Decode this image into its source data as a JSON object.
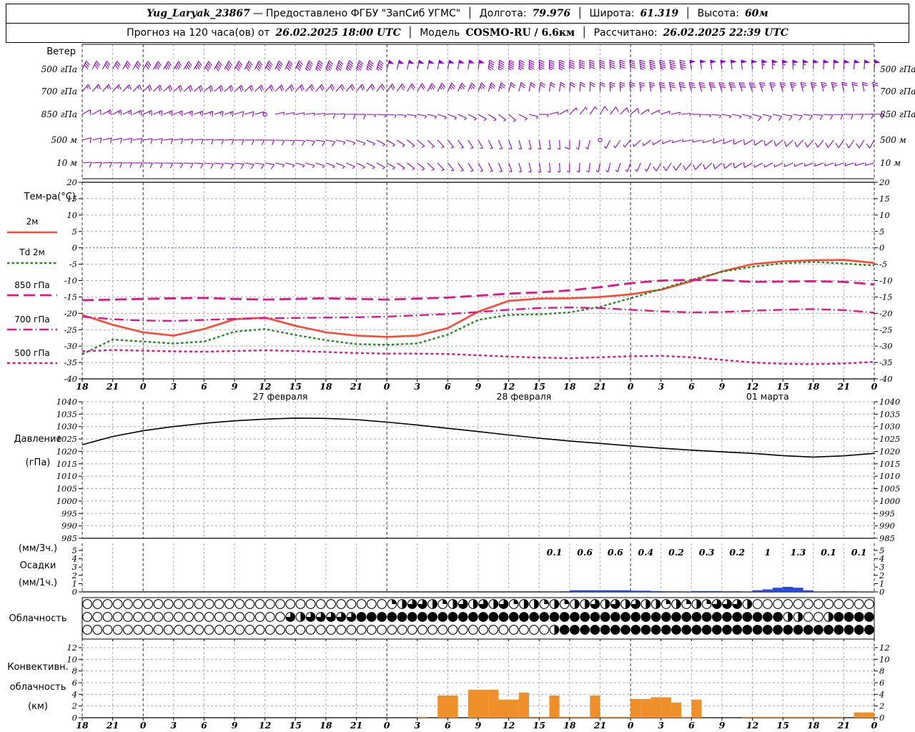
{
  "header": {
    "station": "Yug_Laryak_23867",
    "dash": "—",
    "provided": "Предоставлено ФГБУ \"ЗапСиб УГМС\"",
    "sep": "│",
    "lon_label": "Долгота:",
    "lon_value": "79.976",
    "lat_label": "Широта:",
    "lat_value": "61.319",
    "alt_label": "Высота:",
    "alt_value": "60м",
    "forecast_label": "Прогноз на 120 часа(ов) от",
    "forecast_value": "26.02.2025 18:00 UTC",
    "model_label": "Модель",
    "model_value": "COSMO-RU / 6.6км",
    "calc_label": "Рассчитано:",
    "calc_value": "26.02.2025 22:39 UTC"
  },
  "panels": {
    "wind_title": "Ветер",
    "temp_title": "Тем-ра(°C)",
    "pressure_l1": "Давление",
    "pressure_l2": "(гПа)",
    "precip_l1": "(мм/3ч.)",
    "precip_l2": "Осадки",
    "precip_l3": "(мм/1ч.)",
    "cloud_label": "Облачность",
    "conv_l1": "Конвективн.",
    "conv_l2": "облачность",
    "conv_l3": "(км)"
  },
  "chart_data": {
    "type": "meteogram",
    "colors": {
      "barb": "#9400d3",
      "t2m": "#ff4733",
      "td2m": "#228b22",
      "magenta": "#e0148c",
      "pressure": "#000000",
      "precip_bar": "#2947d8",
      "convective_bar": "#ef8f2a",
      "zero_line": "#3b5bff",
      "grid": "#ababab",
      "grid_dark": "#333333"
    },
    "time": {
      "hours_total": 78,
      "step_h": 3,
      "tick_labels": [
        "18",
        "21",
        "0",
        "3",
        "6",
        "9",
        "12",
        "15",
        "18",
        "21",
        "0",
        "3",
        "6",
        "9",
        "12",
        "15",
        "18",
        "21",
        "0",
        "3",
        "6",
        "9",
        "12",
        "15",
        "18",
        "21",
        "0"
      ],
      "date_labels": [
        {
          "text": "27 февраля",
          "t": 19.5
        },
        {
          "text": "28 февраля",
          "t": 43.5
        },
        {
          "text": "01 марта",
          "t": 67.5
        }
      ]
    },
    "wind": {
      "levels": [
        {
          "label": "500 гПа",
          "y": 97,
          "dir": [
            25,
            28,
            30,
            32,
            30,
            28,
            25,
            22,
            20,
            18,
            15,
            12,
            10,
            8,
            5,
            2,
            0,
            -2,
            -5,
            -8,
            -10,
            -8,
            -5,
            -2,
            0,
            3,
            5
          ],
          "spd": [
            28,
            30,
            32,
            35,
            38,
            40,
            40,
            42,
            45,
            45,
            48,
            50,
            50,
            48,
            45,
            45,
            42,
            40,
            42,
            45,
            48,
            50,
            52,
            55,
            52,
            50,
            48
          ]
        },
        {
          "label": "700 гПа",
          "y": 128,
          "dir": [
            40,
            42,
            45,
            48,
            50,
            48,
            45,
            42,
            40,
            38,
            35,
            30,
            25,
            20,
            15,
            10,
            5,
            0,
            -5,
            -10,
            -15,
            -18,
            -20,
            -18,
            -15,
            -12,
            -10
          ],
          "spd": [
            15,
            16,
            18,
            20,
            22,
            22,
            20,
            20,
            18,
            18,
            20,
            22,
            25,
            25,
            22,
            20,
            20,
            22,
            25,
            28,
            30,
            30,
            28,
            25,
            25,
            22,
            20
          ]
        },
        {
          "label": "850 гПа",
          "y": 160,
          "dir": [
            60,
            62,
            65,
            68,
            70,
            72,
            75,
            80,
            85,
            90,
            95,
            100,
            110,
            120,
            130,
            90,
            45,
            30,
            50,
            70,
            90,
            100,
            105,
            100,
            95,
            90,
            88
          ],
          "spd": [
            12,
            13,
            14,
            15,
            14,
            12,
            2,
            6,
            8,
            8,
            6,
            5,
            5,
            4,
            4,
            5,
            6,
            8,
            8,
            6,
            5,
            6,
            8,
            8,
            8,
            8,
            8
          ]
        },
        {
          "label": "500 м",
          "y": 196,
          "dir": [
            75,
            78,
            80,
            82,
            85,
            88,
            90,
            95,
            100,
            110,
            120,
            130,
            140,
            150,
            160,
            170,
            180,
            200,
            220,
            240,
            260,
            250,
            240,
            230,
            220,
            215,
            210
          ],
          "spd": [
            10,
            10,
            12,
            12,
            12,
            10,
            10,
            8,
            8,
            6,
            5,
            5,
            4,
            4,
            5,
            6,
            8,
            2,
            6,
            5,
            5,
            8,
            10,
            10,
            12,
            12,
            12
          ]
        },
        {
          "label": "10 м",
          "y": 228,
          "dir": [
            85,
            88,
            90,
            92,
            95,
            98,
            100,
            105,
            110,
            115,
            120,
            130,
            140,
            150,
            160,
            170,
            180,
            190,
            200,
            210,
            220,
            230,
            240,
            245,
            250,
            252,
            255
          ],
          "spd": [
            8,
            8,
            8,
            10,
            10,
            8,
            8,
            6,
            6,
            5,
            5,
            4,
            4,
            5,
            6,
            6,
            5,
            5,
            6,
            8,
            8,
            8,
            8,
            6,
            6,
            5,
            5
          ]
        }
      ]
    },
    "temperature": {
      "ylim": [
        -40,
        20
      ],
      "tick_step": 5,
      "series": [
        {
          "name": "2м",
          "color": "#ff4733",
          "dash": "",
          "width": 2.6,
          "legend_y": 325,
          "values": [
            -20.5,
            -23.5,
            -25.8,
            -26.8,
            -24.8,
            -21.8,
            -21.3,
            -23.8,
            -25.8,
            -26.8,
            -27.2,
            -26.8,
            -24.5,
            -19.5,
            -16.2,
            -15.5,
            -15.4,
            -15.0,
            -14.2,
            -12.8,
            -10.2,
            -7.2,
            -5.0,
            -4.1,
            -3.8,
            -3.7,
            -4.6
          ]
        },
        {
          "name": "Td 2м",
          "color": "#228b22",
          "dash": "3.5 3",
          "width": 2.4,
          "legend_y": 368,
          "values": [
            -32.5,
            -28.0,
            -28.6,
            -29.2,
            -28.6,
            -25.6,
            -24.8,
            -26.6,
            -28.2,
            -29.4,
            -29.6,
            -29.2,
            -26.5,
            -22.0,
            -20.5,
            -20.3,
            -19.7,
            -18.0,
            -15.4,
            -12.6,
            -9.8,
            -7.3,
            -5.8,
            -4.7,
            -4.3,
            -4.8,
            -5.4
          ]
        },
        {
          "name": "850 гПа",
          "color": "#e0148c",
          "dash": "16 7",
          "width": 2.8,
          "legend_y": 413,
          "values": [
            -16.0,
            -15.8,
            -15.6,
            -15.4,
            -15.3,
            -15.6,
            -15.8,
            -15.6,
            -15.4,
            -15.6,
            -15.8,
            -15.5,
            -15.2,
            -14.6,
            -14.0,
            -13.6,
            -13.0,
            -12.0,
            -10.8,
            -10.0,
            -9.8,
            -9.9,
            -10.4,
            -10.3,
            -10.2,
            -10.4,
            -11.2
          ]
        },
        {
          "name": "700 гПа",
          "color": "#e0148c",
          "dash": "13 4 1.5 4",
          "width": 2.4,
          "legend_y": 461,
          "values": [
            -21.0,
            -21.8,
            -22.2,
            -22.3,
            -22.0,
            -21.7,
            -21.5,
            -21.4,
            -21.3,
            -21.2,
            -21.0,
            -20.6,
            -20.2,
            -19.6,
            -18.9,
            -18.4,
            -18.2,
            -18.4,
            -18.9,
            -19.4,
            -19.7,
            -19.6,
            -19.2,
            -18.9,
            -18.7,
            -19.0,
            -19.8
          ]
        },
        {
          "name": "500 гПа",
          "color": "#e0148c",
          "dash": "4 3.5",
          "width": 2.4,
          "legend_y": 508,
          "values": [
            -31.6,
            -31.2,
            -31.4,
            -31.6,
            -31.7,
            -31.5,
            -31.3,
            -31.5,
            -31.8,
            -32.1,
            -32.3,
            -32.3,
            -32.4,
            -32.8,
            -33.2,
            -33.5,
            -33.7,
            -33.4,
            -33.1,
            -33.0,
            -33.4,
            -34.2,
            -35.0,
            -35.4,
            -35.5,
            -35.3,
            -34.8
          ]
        }
      ]
    },
    "pressure": {
      "ylim": [
        985,
        1040
      ],
      "tick_step": 5,
      "values": [
        1022.7,
        1026.0,
        1028.3,
        1030.0,
        1031.3,
        1032.3,
        1033.0,
        1033.4,
        1033.3,
        1032.8,
        1031.8,
        1030.6,
        1029.3,
        1028.0,
        1026.6,
        1025.3,
        1024.2,
        1023.2,
        1022.2,
        1021.3,
        1020.5,
        1019.8,
        1019.2,
        1018.3,
        1017.7,
        1018.2,
        1019.2
      ]
    },
    "precip": {
      "ylim": [
        0,
        5
      ],
      "labels_3h": [
        "0.1",
        "0.6",
        "0.6",
        "0.4",
        "0.2",
        "0.3",
        "0.2",
        "1",
        "1.3",
        "0.1",
        "0.1"
      ],
      "labels_start_t": 45,
      "hourly": [
        0,
        0,
        0,
        0,
        0,
        0,
        0,
        0,
        0,
        0,
        0,
        0,
        0,
        0,
        0,
        0,
        0,
        0,
        0,
        0,
        0,
        0,
        0,
        0,
        0,
        0,
        0,
        0,
        0,
        0,
        0,
        0,
        0,
        0,
        0,
        0,
        0,
        0,
        0,
        0,
        0,
        0,
        0,
        0,
        0,
        0,
        0.05,
        0.08,
        0.2,
        0.2,
        0.2,
        0.2,
        0.2,
        0.2,
        0.15,
        0.15,
        0.1,
        0.08,
        0.07,
        0.05,
        0.1,
        0.1,
        0.1,
        0.07,
        0.08,
        0.05,
        0.2,
        0.3,
        0.5,
        0.6,
        0.5,
        0.2,
        0.05,
        0.05,
        0,
        0,
        0.05,
        0.05
      ]
    },
    "cloud": {
      "rows": [
        "000000000000000000000000000000123321232323122121223232322121213332000000000000",
        "000000000000000000003233333444444444444444444444444444444444444444444220024444",
        "000000000000000000000000000000000000000000000024444444444444444444444444444444"
      ]
    },
    "convective": {
      "ylim": [
        0,
        13
      ],
      "ticks": [
        0,
        2,
        4,
        6,
        8,
        10,
        12
      ],
      "hourly_top_km": [
        0,
        0,
        0,
        0,
        0,
        0,
        0,
        0,
        0,
        0,
        0,
        0,
        0,
        0,
        0,
        0,
        0,
        0,
        0,
        0,
        0,
        0,
        0,
        0,
        0,
        0,
        0,
        0,
        0,
        0,
        0,
        0,
        0,
        0.15,
        0,
        3.8,
        3.8,
        0,
        4.8,
        4.8,
        4.8,
        3.1,
        3.1,
        4.3,
        0.15,
        0.15,
        3.8,
        0.15,
        0.15,
        0.15,
        3.8,
        0.15,
        0.15,
        0.15,
        3.2,
        3.2,
        3.5,
        3.5,
        2.6,
        0.15,
        3.1,
        0,
        0,
        0,
        0,
        0.15,
        0.15,
        0.15,
        0.15,
        0.15,
        0.15,
        0.15,
        0.15,
        0.15,
        0.15,
        0,
        0.9,
        0.9
      ]
    }
  }
}
